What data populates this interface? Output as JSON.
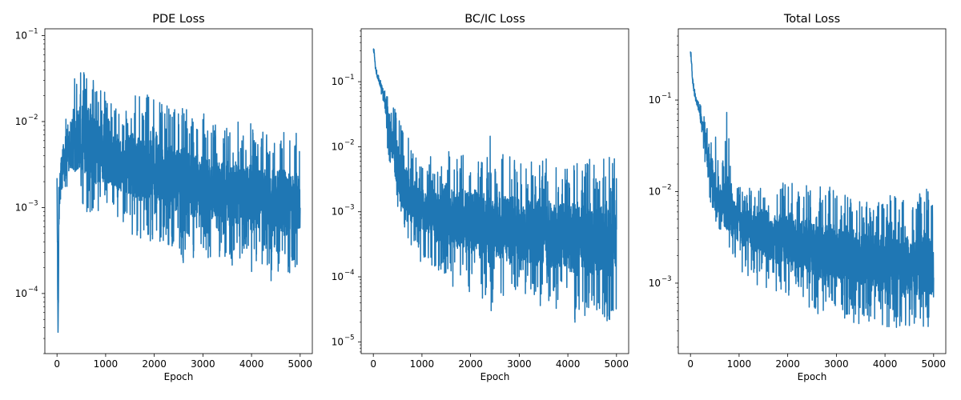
{
  "chart_data": [
    {
      "type": "line",
      "title": "PDE Loss",
      "xlabel": "Epoch",
      "ylabel": "",
      "yscale": "log",
      "xlim": [
        -250,
        5250
      ],
      "ylim": [
        2e-05,
        0.12
      ],
      "xticks": [
        "0",
        "1000",
        "2000",
        "3000",
        "4000",
        "5000"
      ],
      "yticks": [
        {
          "value": 0.1,
          "base": "10",
          "exp": "−1"
        },
        {
          "value": 0.01,
          "base": "10",
          "exp": "−2"
        },
        {
          "value": 0.001,
          "base": "10",
          "exp": "−3"
        },
        {
          "value": 0.0001,
          "base": "10",
          "exp": "−4"
        }
      ],
      "color": "#1f77b4",
      "grid": false,
      "x": [
        0,
        20,
        40,
        60,
        80,
        100,
        150,
        200,
        250,
        300,
        350,
        400,
        450,
        500,
        550,
        600,
        650,
        700,
        750,
        800,
        900,
        1000,
        1100,
        1200,
        1300,
        1400,
        1500,
        1600,
        1700,
        1800,
        1900,
        2000,
        2100,
        2200,
        2300,
        2400,
        2500,
        2600,
        2700,
        2800,
        2900,
        3000,
        3100,
        3200,
        3300,
        3400,
        3500,
        3600,
        3700,
        3800,
        3900,
        4000,
        4100,
        4200,
        4300,
        4400,
        4500,
        4600,
        4700,
        4800,
        4900,
        5000
      ],
      "y": [
        0.0022,
        2.5e-05,
        0.0008,
        0.0015,
        0.0025,
        0.003,
        0.004,
        0.0045,
        0.005,
        0.0052,
        0.0055,
        0.006,
        0.006,
        0.0058,
        0.0055,
        0.0052,
        0.005,
        0.0048,
        0.0045,
        0.0042,
        0.004,
        0.0038,
        0.0036,
        0.0035,
        0.0033,
        0.0032,
        0.003,
        0.0029,
        0.0028,
        0.0027,
        0.0026,
        0.0025,
        0.0024,
        0.0023,
        0.0022,
        0.0021,
        0.002,
        0.00195,
        0.0019,
        0.00185,
        0.0018,
        0.00175,
        0.0017,
        0.00165,
        0.0016,
        0.00155,
        0.0015,
        0.00145,
        0.0014,
        0.00135,
        0.0013,
        0.00128,
        0.00125,
        0.00122,
        0.0012,
        0.00118,
        0.00115,
        0.00112,
        0.0011,
        0.00108,
        0.00105,
        0.001
      ],
      "y_max": [
        0.0022,
        0.0001,
        0.003,
        0.005,
        0.006,
        0.008,
        0.012,
        0.018,
        0.03,
        0.035,
        0.05,
        0.045,
        0.04,
        0.06,
        0.05,
        0.045,
        0.07,
        0.075,
        0.04,
        0.03,
        0.035,
        0.025,
        0.02,
        0.018,
        0.016,
        0.015,
        0.025,
        0.02,
        0.02,
        0.016,
        0.03,
        0.05,
        0.022,
        0.018,
        0.015,
        0.016,
        0.013,
        0.02,
        0.012,
        0.011,
        0.012,
        0.014,
        0.011,
        0.01,
        0.009,
        0.013,
        0.01,
        0.009,
        0.011,
        0.008,
        0.009,
        0.01,
        0.008,
        0.009,
        0.008,
        0.009,
        0.008,
        0.009,
        0.008,
        0.007,
        0.008,
        0.007
      ],
      "y_min": [
        0.0022,
        2.5e-05,
        0.0003,
        0.0008,
        0.0012,
        0.0015,
        0.0018,
        0.0015,
        0.0012,
        0.0012,
        0.001,
        0.001,
        0.0011,
        0.0009,
        0.0009,
        0.0008,
        0.0008,
        0.0008,
        0.0007,
        0.0007,
        0.0008,
        0.0009,
        0.0008,
        0.0007,
        0.0006,
        0.0006,
        0.00045,
        0.0004,
        0.0004,
        0.00045,
        0.0004,
        0.0004,
        0.0004,
        0.00035,
        0.00035,
        0.0003,
        0.00035,
        0.00018,
        0.00035,
        0.00025,
        0.0003,
        0.0003,
        0.00025,
        0.00022,
        0.00028,
        0.00025,
        0.00022,
        0.0002,
        0.00022,
        0.0002,
        0.00025,
        0.00014,
        0.0002,
        0.00022,
        0.0002,
        0.00014,
        0.00018,
        0.00015,
        0.00016,
        0.00014,
        0.00018,
        0.0003
      ]
    },
    {
      "type": "line",
      "title": "BC/IC Loss",
      "xlabel": "Epoch",
      "ylabel": "",
      "yscale": "log",
      "xlim": [
        -250,
        5250
      ],
      "ylim": [
        6.6e-06,
        0.65
      ],
      "xticks": [
        "0",
        "1000",
        "2000",
        "3000",
        "4000",
        "5000"
      ],
      "yticks": [
        {
          "value": 0.1,
          "base": "10",
          "exp": "−1"
        },
        {
          "value": 0.01,
          "base": "10",
          "exp": "−2"
        },
        {
          "value": 0.001,
          "base": "10",
          "exp": "−3"
        },
        {
          "value": 0.0001,
          "base": "10",
          "exp": "−4"
        },
        {
          "value": 1e-05,
          "base": "10",
          "exp": "−5"
        }
      ],
      "color": "#1f77b4",
      "grid": false,
      "x": [
        0,
        20,
        40,
        60,
        80,
        100,
        150,
        200,
        250,
        300,
        350,
        400,
        450,
        500,
        550,
        600,
        650,
        700,
        750,
        800,
        900,
        1000,
        1100,
        1200,
        1300,
        1400,
        1500,
        1600,
        1700,
        1800,
        1900,
        2000,
        2100,
        2200,
        2300,
        2400,
        2500,
        2600,
        2700,
        2800,
        2900,
        3000,
        3100,
        3200,
        3300,
        3400,
        3500,
        3600,
        3700,
        3800,
        3900,
        4000,
        4100,
        4200,
        4300,
        4400,
        4500,
        4600,
        4700,
        4800,
        4900,
        5000
      ],
      "y": [
        0.3,
        0.25,
        0.18,
        0.14,
        0.12,
        0.11,
        0.09,
        0.07,
        0.05,
        0.03,
        0.018,
        0.01,
        0.006,
        0.004,
        0.003,
        0.0025,
        0.002,
        0.0018,
        0.0016,
        0.0015,
        0.0013,
        0.0012,
        0.0011,
        0.001,
        0.00095,
        0.0009,
        0.00085,
        0.0008,
        0.00078,
        0.00075,
        0.00072,
        0.0007,
        0.00068,
        0.00065,
        0.00063,
        0.0006,
        0.00058,
        0.00056,
        0.00055,
        0.00054,
        0.00052,
        0.0005,
        0.00049,
        0.00048,
        0.00047,
        0.00046,
        0.00045,
        0.00044,
        0.00043,
        0.00042,
        0.00041,
        0.0004,
        0.0004,
        0.00039,
        0.00038,
        0.00038,
        0.00037,
        0.00037,
        0.00036,
        0.00036,
        0.00035,
        0.0005
      ],
      "y_max": [
        0.4,
        0.32,
        0.2,
        0.16,
        0.14,
        0.13,
        0.11,
        0.09,
        0.07,
        0.06,
        0.035,
        0.045,
        0.04,
        0.05,
        0.02,
        0.03,
        0.012,
        0.02,
        0.008,
        0.01,
        0.006,
        0.005,
        0.004,
        0.012,
        0.004,
        0.005,
        0.012,
        0.01,
        0.006,
        0.008,
        0.012,
        0.007,
        0.01,
        0.006,
        0.008,
        0.015,
        0.006,
        0.01,
        0.007,
        0.007,
        0.008,
        0.006,
        0.006,
        0.008,
        0.005,
        0.007,
        0.006,
        0.007,
        0.005,
        0.007,
        0.006,
        0.005,
        0.006,
        0.007,
        0.005,
        0.006,
        0.007,
        0.005,
        0.006,
        0.008,
        0.007,
        0.008
      ],
      "y_min": [
        0.4,
        0.3,
        0.16,
        0.13,
        0.11,
        0.1,
        0.07,
        0.05,
        0.02,
        0.008,
        0.004,
        0.0025,
        0.0015,
        0.0012,
        0.0008,
        0.0004,
        0.0004,
        0.00035,
        0.0003,
        0.00025,
        0.0002,
        0.0001,
        0.0002,
        0.00015,
        0.0001,
        0.00012,
        8e-05,
        8e-05,
        5e-05,
        8e-05,
        6e-05,
        5e-05,
        8e-05,
        4e-05,
        5e-05,
        2e-05,
        6e-05,
        4e-05,
        5e-05,
        3e-05,
        5e-05,
        6e-05,
        4e-05,
        4e-05,
        5e-05,
        3e-05,
        4e-05,
        4e-05,
        3e-05,
        3e-05,
        4e-05,
        2e-05,
        3e-05,
        1.2e-05,
        3e-05,
        2e-05,
        2.5e-05,
        2e-05,
        2.5e-05,
        2e-05,
        2e-05,
        3e-05
      ]
    },
    {
      "type": "line",
      "title": "Total Loss",
      "xlabel": "Epoch",
      "ylabel": "",
      "yscale": "log",
      "xlim": [
        -250,
        5250
      ],
      "ylim": [
        0.00017,
        0.6
      ],
      "xticks": [
        "0",
        "1000",
        "2000",
        "3000",
        "4000",
        "5000"
      ],
      "yticks": [
        {
          "value": 0.1,
          "base": "10",
          "exp": "−1"
        },
        {
          "value": 0.01,
          "base": "10",
          "exp": "−2"
        },
        {
          "value": 0.001,
          "base": "10",
          "exp": "−3"
        }
      ],
      "color": "#1f77b4",
      "grid": false,
      "x": [
        0,
        20,
        40,
        60,
        80,
        100,
        150,
        200,
        250,
        300,
        350,
        400,
        450,
        500,
        550,
        600,
        650,
        700,
        750,
        800,
        900,
        1000,
        1100,
        1200,
        1300,
        1400,
        1500,
        1600,
        1700,
        1800,
        1900,
        2000,
        2100,
        2200,
        2300,
        2400,
        2500,
        2600,
        2700,
        2800,
        2900,
        3000,
        3100,
        3200,
        3300,
        3400,
        3500,
        3600,
        3700,
        3800,
        3900,
        4000,
        4100,
        4200,
        4300,
        4400,
        4500,
        4600,
        4700,
        4800,
        4900,
        5000
      ],
      "y": [
        0.3,
        0.25,
        0.18,
        0.14,
        0.12,
        0.11,
        0.09,
        0.07,
        0.05,
        0.035,
        0.025,
        0.018,
        0.012,
        0.009,
        0.008,
        0.007,
        0.0065,
        0.006,
        0.0058,
        0.0055,
        0.005,
        0.0048,
        0.0045,
        0.0043,
        0.004,
        0.0038,
        0.0036,
        0.0034,
        0.0032,
        0.0031,
        0.003,
        0.0029,
        0.0028,
        0.0027,
        0.0026,
        0.0025,
        0.0024,
        0.0023,
        0.0022,
        0.0022,
        0.0021,
        0.0021,
        0.002,
        0.002,
        0.0019,
        0.0019,
        0.0018,
        0.0018,
        0.0017,
        0.0017,
        0.0017,
        0.0016,
        0.0016,
        0.0016,
        0.0015,
        0.0015,
        0.0015,
        0.0014,
        0.0014,
        0.0014,
        0.0014,
        0.001
      ],
      "y_max": [
        0.4,
        0.3,
        0.2,
        0.16,
        0.14,
        0.13,
        0.11,
        0.09,
        0.08,
        0.08,
        0.06,
        0.04,
        0.05,
        0.04,
        0.05,
        0.03,
        0.02,
        0.03,
        0.1,
        0.03,
        0.015,
        0.012,
        0.01,
        0.012,
        0.01,
        0.01,
        0.015,
        0.012,
        0.01,
        0.012,
        0.018,
        0.015,
        0.014,
        0.01,
        0.012,
        0.015,
        0.01,
        0.016,
        0.01,
        0.01,
        0.012,
        0.009,
        0.01,
        0.012,
        0.008,
        0.01,
        0.009,
        0.008,
        0.008,
        0.009,
        0.008,
        0.008,
        0.009,
        0.012,
        0.008,
        0.009,
        0.008,
        0.007,
        0.009,
        0.015,
        0.01,
        0.012
      ],
      "y_min": [
        0.4,
        0.28,
        0.16,
        0.13,
        0.11,
        0.1,
        0.08,
        0.06,
        0.035,
        0.02,
        0.012,
        0.008,
        0.006,
        0.005,
        0.004,
        0.0035,
        0.003,
        0.0025,
        0.0022,
        0.002,
        0.0015,
        0.0015,
        0.0012,
        0.0011,
        0.001,
        0.0009,
        0.001,
        0.0008,
        0.0008,
        0.0007,
        0.0008,
        0.0007,
        0.0008,
        0.0006,
        0.0007,
        0.0005,
        0.0006,
        0.0004,
        0.0005,
        0.00025,
        0.0005,
        0.0005,
        0.0004,
        0.0004,
        0.0004,
        0.0003,
        0.0004,
        0.0004,
        0.0003,
        0.0004,
        0.0003,
        0.0003,
        0.0003,
        0.00025,
        0.0003,
        0.00025,
        0.0003,
        0.0003,
        0.00025,
        0.0003,
        0.00028,
        0.0006
      ]
    }
  ]
}
